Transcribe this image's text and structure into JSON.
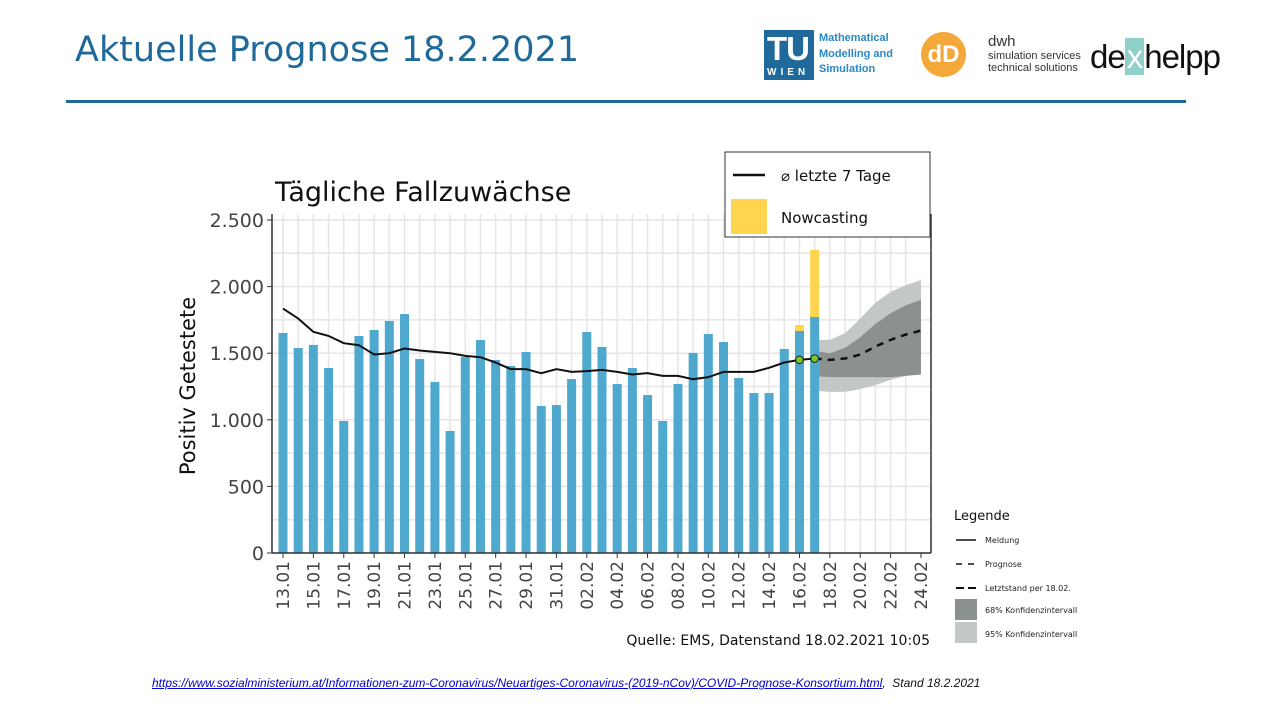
{
  "slide": {
    "title": "Aktuelle Prognose 18.2.2021"
  },
  "logos": {
    "tu": {
      "big": "TU",
      "small": "WIEN",
      "lines": [
        "Mathematical",
        "Modelling and",
        "Simulation"
      ]
    },
    "dwh": {
      "mark": "dD",
      "name": "dwh",
      "lines": [
        "simulation services",
        "technical solutions"
      ]
    },
    "dexhelpp": {
      "pre": "de",
      "x": "x",
      "post": "helpp"
    }
  },
  "footer": {
    "url": "https://www.sozialministerium.at/Informationen-zum-Coronavirus/Neuartiges-Coronavirus-(2019-nCov)/COVID-Prognose-Konsortium.html",
    "stand": "Stand 18.2.2021"
  },
  "colors": {
    "bar": "#4fa9cf",
    "nowcast": "#ffd54f",
    "ci68": "#8b918d",
    "ci95": "#c3c8c5",
    "dot": "#7cc62a"
  },
  "chart_data": {
    "type": "bar",
    "title": "Tägliche Fallzuwächse",
    "xlabel": "",
    "ylabel": "Positiv Getestete",
    "ylim": [
      0,
      2500
    ],
    "yticks": [
      0,
      500,
      1000,
      1500,
      2000,
      2500
    ],
    "ytick_labels": [
      "0",
      "500",
      "1.000",
      "1.500",
      "2.000",
      "2.500"
    ],
    "xtick_labels": [
      "13.01",
      "15.01",
      "17.01",
      "19.01",
      "21.01",
      "23.01",
      "25.01",
      "27.01",
      "29.01",
      "31.01",
      "02.02",
      "04.02",
      "06.02",
      "08.02",
      "10.02",
      "12.02",
      "14.02",
      "16.02",
      "18.02",
      "20.02",
      "22.02",
      "24.02"
    ],
    "n_days": 42,
    "bars": [
      1652,
      1539,
      1562,
      1389,
      991,
      1629,
      1674,
      1742,
      1794,
      1456,
      1284,
      916,
      1471,
      1599,
      1449,
      1404,
      1509,
      1104,
      1111,
      1306,
      1659,
      1547,
      1269,
      1389,
      1186,
      991,
      1269,
      1502,
      1644,
      1584,
      1314,
      1201,
      1201,
      1532,
      1667,
      1772
    ],
    "nowcasting": [
      {
        "day": 34,
        "total": 1712
      },
      {
        "day": 35,
        "total": 2275
      }
    ],
    "avg7": [
      1835,
      1760,
      1660,
      1630,
      1575,
      1560,
      1490,
      1500,
      1535,
      1520,
      1510,
      1500,
      1480,
      1470,
      1430,
      1380,
      1380,
      1350,
      1380,
      1360,
      1365,
      1375,
      1360,
      1340,
      1350,
      1330,
      1330,
      1305,
      1320,
      1360,
      1360,
      1360,
      1390,
      1430,
      1450,
      1460
    ],
    "markers": [
      {
        "day": 34,
        "value": 1450
      },
      {
        "day": 35,
        "value": 1460
      }
    ],
    "forecast": {
      "start_day": 35,
      "values": [
        1460,
        1450,
        1460,
        1490,
        1550,
        1600,
        1640,
        1670
      ],
      "ci68_low": [
        1330,
        1320,
        1320,
        1320,
        1320,
        1320,
        1330,
        1340
      ],
      "ci68_high": [
        1520,
        1500,
        1540,
        1620,
        1720,
        1800,
        1860,
        1900
      ],
      "ci95_low": [
        1220,
        1210,
        1210,
        1230,
        1260,
        1300,
        1330,
        1350
      ],
      "ci95_high": [
        1600,
        1600,
        1650,
        1760,
        1880,
        1960,
        2010,
        2050
      ]
    },
    "legend_top": [
      {
        "label": "⌀ letzte 7 Tage"
      },
      {
        "label": "Nowcasting"
      }
    ],
    "legend_side": {
      "title": "Legende",
      "items": [
        "Meldung",
        "Prognose",
        "Letztstand per 18.02.",
        "68% Konfidenzintervall",
        "95% Konfidenzintervall"
      ]
    },
    "source": "Quelle: EMS, Datenstand 18.02.2021 10:05",
    "grid": true,
    "legend_placement": "top-right"
  }
}
